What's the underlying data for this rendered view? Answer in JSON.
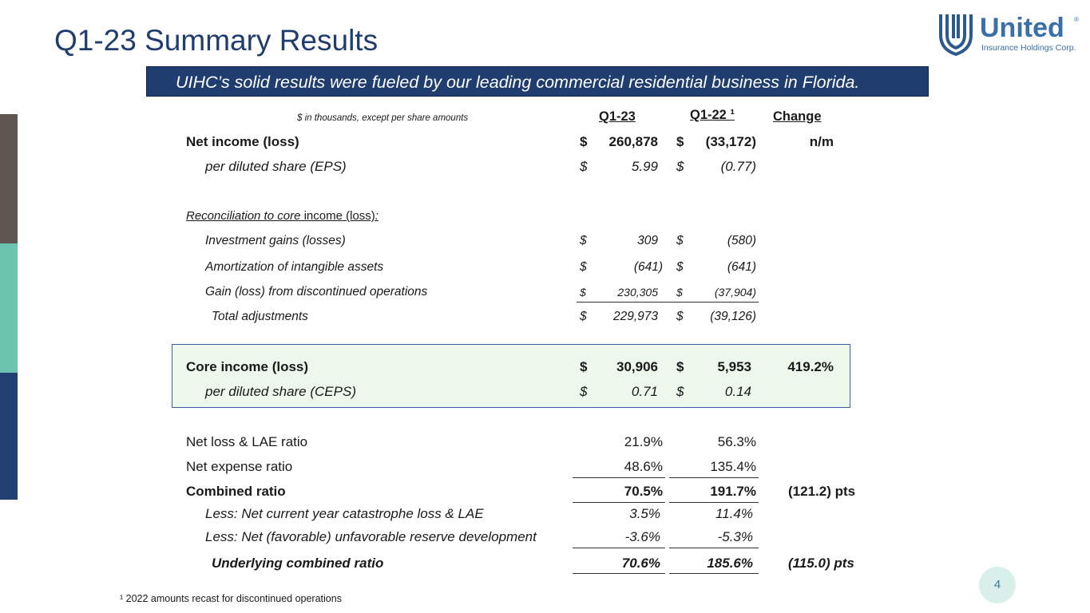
{
  "title": "Q1-23 Summary Results",
  "banner": "UIHC’s solid results were fueled by our leading commercial residential business in Florida.",
  "logo": {
    "name": "United",
    "reg": "®",
    "sub": "Insurance Holdings Corp.",
    "icon": "shield-logo-icon"
  },
  "colors": {
    "navy": "#1f3d6e",
    "bar_top": "#5e564f",
    "bar_mid": "#6cc3b0",
    "bar_bottom": "#233f72",
    "core_fill": "#ecf8ec"
  },
  "table": {
    "units_note": "$ in thousands, except per share amounts",
    "col_q123": "Q1-23",
    "col_q122": "Q1-22 ¹",
    "col_change": "Change",
    "cur": "$",
    "net_income": {
      "label": "Net income (loss)",
      "q123": "260,878",
      "q122": "(33,172)",
      "change": "n/m"
    },
    "eps": {
      "label": "per diluted share (EPS)",
      "q123": "5.99",
      "q122": "(0.77)"
    },
    "recon_a": "Reconciliation to core",
    "recon_b": " income (loss)",
    "recon_c": ":",
    "inv_gains": {
      "label": "Investment gains (losses)",
      "q123": "309",
      "q122": "(580)"
    },
    "amort": {
      "label": "Amortization of intangible assets",
      "q123": "(641)",
      "q122": "(641)"
    },
    "disc_ops": {
      "label": "Gain (loss) from discontinued operations",
      "q123": "230,305",
      "q122": "(37,904)"
    },
    "total_adj": {
      "label": "Total adjustments",
      "q123": "229,973",
      "q122": "(39,126)"
    },
    "core": {
      "label": "Core income (loss)",
      "q123": "30,906",
      "q122": "5,953",
      "change": "419.2%"
    },
    "ceps": {
      "label": "per diluted share (CEPS)",
      "q123": "0.71",
      "q122": "0.14"
    },
    "loss_lae": {
      "label": "Net loss & LAE ratio",
      "q123": "21.9%",
      "q122": "56.3%"
    },
    "expense": {
      "label": "Net expense ratio",
      "q123": "48.6%",
      "q122": "135.4%"
    },
    "combined": {
      "label": "Combined ratio",
      "q123": "70.5%",
      "q122": "191.7%",
      "change": "(121.2) pts"
    },
    "cat": {
      "label": "Less:  Net current year catastrophe loss & LAE",
      "q123": "3.5%",
      "q122": "11.4%"
    },
    "reserve": {
      "label": "Less: Net (favorable) unfavorable reserve development",
      "q123": "-3.6%",
      "q122": "-5.3%"
    },
    "underlying": {
      "label": "Underlying combined ratio",
      "q123": "70.6%",
      "q122": "185.6%",
      "change": "(115.0) pts"
    }
  },
  "footnote": "¹  2022 amounts recast for discontinued operations",
  "page_number": "4"
}
